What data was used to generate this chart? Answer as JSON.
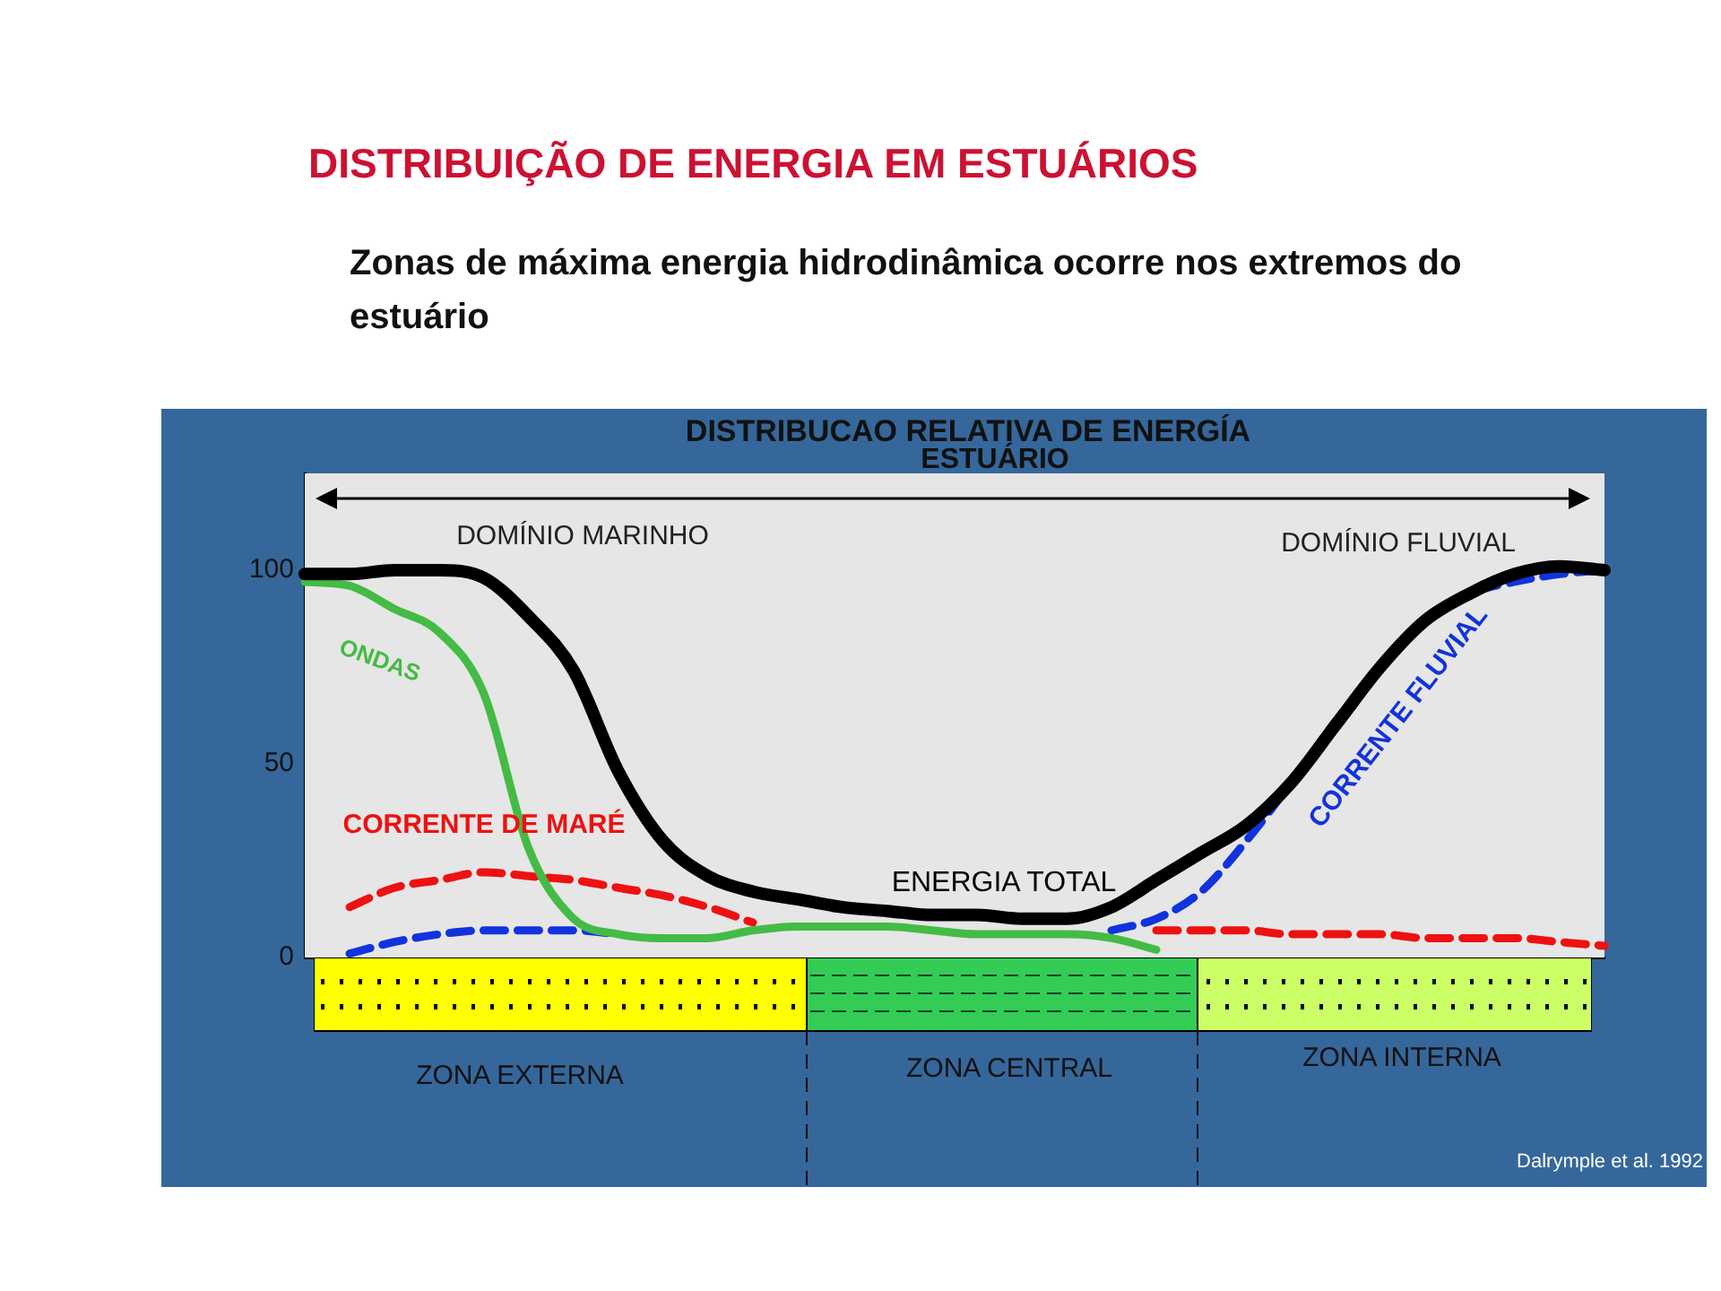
{
  "chart_data": {
    "type": "line",
    "title": "DISTRIBUIÇÃO DE ENERGIA EM ESTUÁRIOS",
    "subtitle": "Zonas de máxima energia hidrodinâmica ocorre nos extremos do estuário",
    "annotations": [
      "DISTRIBUCAO RELATIVA DE ENERGÍA",
      "ESTUÁRIO",
      "DOMÍNIO MARINHO",
      "DOMÍNIO FLUVIAL",
      "ZONA EXTERNA",
      "ZONA CENTRAL",
      "ZONA INTERNA",
      "Dalrymple et al. 1992"
    ],
    "categories": [
      null,
      null,
      null,
      null,
      null,
      null,
      null,
      null,
      null,
      null,
      null,
      null,
      null,
      null,
      null,
      null,
      null,
      null,
      null,
      null,
      null,
      null,
      null,
      null,
      null,
      null,
      null,
      null,
      null,
      null
    ],
    "series": [
      {
        "name": "ENERGIA TOTAL",
        "color": "#000000",
        "line_style": "solid",
        "values": [
          99,
          99,
          100,
          100,
          98,
          88,
          74,
          48,
          30,
          21,
          17,
          15,
          13,
          12,
          11,
          11,
          10,
          10,
          13,
          20,
          27,
          34,
          45,
          60,
          75,
          87,
          94,
          99,
          101,
          100
        ]
      },
      {
        "name": "ONDAS",
        "color": "#44bb44",
        "line_style": "solid",
        "values": [
          97,
          96,
          90,
          84,
          68,
          28,
          10,
          6,
          5,
          5,
          7,
          8,
          8,
          8,
          7,
          6,
          6,
          6,
          5,
          2,
          null,
          null,
          null,
          null,
          null,
          null,
          null,
          null,
          null,
          null
        ]
      },
      {
        "name": "CORRENTE DE MARÉ",
        "color": "#ee1111",
        "line_style": "dashed",
        "values": [
          null,
          13,
          18,
          20,
          22,
          21,
          20,
          18,
          16,
          13,
          9,
          null,
          null,
          null,
          null,
          null,
          null,
          null,
          null,
          7,
          7,
          7,
          6,
          6,
          6,
          5,
          5,
          5,
          4,
          3
        ]
      },
      {
        "name": "CORRENTE FLUVIAL",
        "color": "#1133dd",
        "line_style": "dashed",
        "values": [
          null,
          1,
          4,
          6,
          7,
          7,
          7,
          6,
          null,
          null,
          null,
          null,
          null,
          null,
          null,
          null,
          null,
          null,
          7,
          10,
          17,
          30,
          45,
          61,
          75,
          87,
          94,
          97,
          99,
          100
        ]
      }
    ],
    "ylim": [
      0,
      125
    ],
    "yticks": [
      0,
      50,
      100
    ],
    "tick_labels": "y",
    "grid": false,
    "legend": false,
    "marker": "none"
  }
}
